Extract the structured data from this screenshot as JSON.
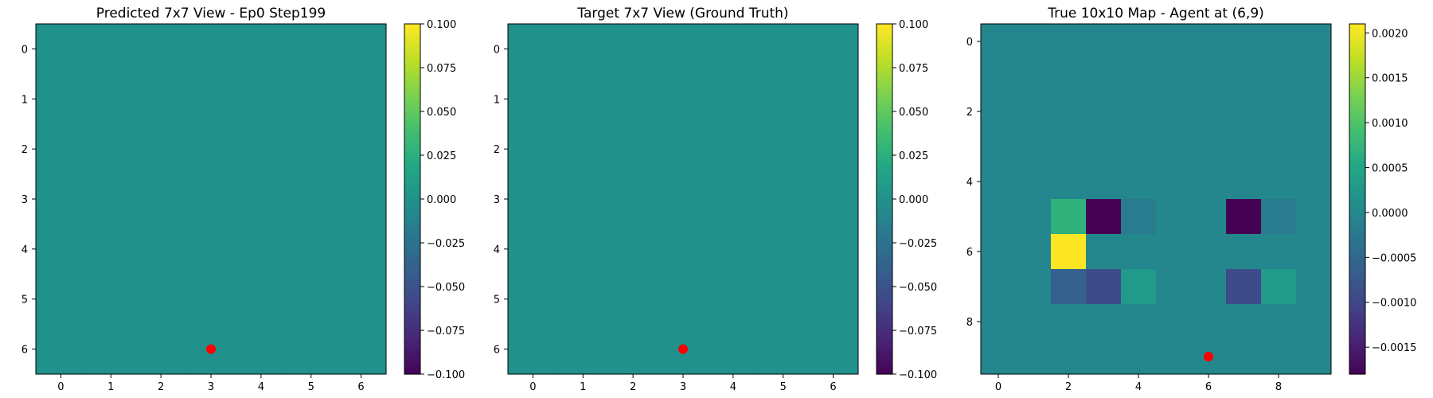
{
  "chart_data": [
    {
      "type": "heatmap",
      "title": "Predicted 7x7 View - Ep0 Step199",
      "x_ticks": [
        "0",
        "1",
        "2",
        "3",
        "4",
        "5",
        "6"
      ],
      "y_ticks": [
        "0",
        "1",
        "2",
        "3",
        "4",
        "5",
        "6"
      ],
      "rows": 7,
      "cols": 7,
      "values": [
        [
          0,
          0,
          0,
          0,
          0,
          0,
          0
        ],
        [
          0,
          0,
          0,
          0,
          0,
          0,
          0
        ],
        [
          0,
          0,
          0,
          0,
          0,
          0,
          0
        ],
        [
          0,
          0,
          0,
          0,
          0,
          0,
          0
        ],
        [
          0,
          0,
          0,
          0,
          0,
          0,
          0
        ],
        [
          0,
          0,
          0,
          0,
          0,
          0,
          0
        ],
        [
          0,
          0,
          0,
          0,
          0,
          0,
          0
        ]
      ],
      "vmin": -0.1,
      "vmax": 0.1,
      "colorbar_ticks": [
        "0.100",
        "0.075",
        "0.050",
        "0.025",
        "0.000",
        "−0.025",
        "−0.050",
        "−0.075",
        "−0.100"
      ],
      "colorbar_tick_values": [
        0.1,
        0.075,
        0.05,
        0.025,
        0,
        -0.025,
        -0.05,
        -0.075,
        -0.1
      ],
      "marker": {
        "x": 3,
        "y": 6,
        "color": "#ff0000"
      },
      "colormap": "viridis"
    },
    {
      "type": "heatmap",
      "title": "Target 7x7 View (Ground Truth)",
      "x_ticks": [
        "0",
        "1",
        "2",
        "3",
        "4",
        "5",
        "6"
      ],
      "y_ticks": [
        "0",
        "1",
        "2",
        "3",
        "4",
        "5",
        "6"
      ],
      "rows": 7,
      "cols": 7,
      "values": [
        [
          0,
          0,
          0,
          0,
          0,
          0,
          0
        ],
        [
          0,
          0,
          0,
          0,
          0,
          0,
          0
        ],
        [
          0,
          0,
          0,
          0,
          0,
          0,
          0
        ],
        [
          0,
          0,
          0,
          0,
          0,
          0,
          0
        ],
        [
          0,
          0,
          0,
          0,
          0,
          0,
          0
        ],
        [
          0,
          0,
          0,
          0,
          0,
          0,
          0
        ],
        [
          0,
          0,
          0,
          0,
          0,
          0,
          0
        ]
      ],
      "vmin": -0.1,
      "vmax": 0.1,
      "colorbar_ticks": [
        "0.100",
        "0.075",
        "0.050",
        "0.025",
        "0.000",
        "−0.025",
        "−0.050",
        "−0.075",
        "−0.100"
      ],
      "colorbar_tick_values": [
        0.1,
        0.075,
        0.05,
        0.025,
        0,
        -0.025,
        -0.05,
        -0.075,
        -0.1
      ],
      "marker": {
        "x": 3,
        "y": 6,
        "color": "#ff0000"
      },
      "colormap": "viridis"
    },
    {
      "type": "heatmap",
      "title": "True 10x10 Map - Agent at (6,9)",
      "x_ticks": [
        "0",
        "2",
        "4",
        "6",
        "8"
      ],
      "x_tick_values": [
        0,
        2,
        4,
        6,
        8
      ],
      "y_ticks": [
        "0",
        "2",
        "4",
        "6",
        "8"
      ],
      "y_tick_values": [
        0,
        2,
        4,
        6,
        8
      ],
      "rows": 10,
      "cols": 10,
      "values": [
        [
          0,
          0,
          0,
          0,
          0,
          0,
          0,
          0,
          0,
          0
        ],
        [
          0,
          0,
          0,
          0,
          0,
          0,
          0,
          0,
          0,
          0
        ],
        [
          0,
          0,
          0,
          0,
          0,
          0,
          0,
          0,
          0,
          0
        ],
        [
          0,
          0,
          0,
          0,
          0,
          0,
          0,
          0,
          0,
          0
        ],
        [
          0,
          0,
          0,
          0,
          0,
          0,
          0,
          0,
          0,
          0
        ],
        [
          0,
          0,
          0.0007,
          -0.0018,
          -0.0002,
          0,
          0,
          -0.0018,
          -0.0002,
          0
        ],
        [
          0,
          0,
          0.0021,
          0,
          0,
          0,
          0,
          0,
          0,
          0
        ],
        [
          0,
          0,
          -0.0006,
          -0.0009,
          0.0003,
          0,
          0,
          -0.0009,
          0.0003,
          0
        ],
        [
          0,
          0,
          0,
          0,
          0,
          0,
          0,
          0,
          0,
          0
        ],
        [
          0,
          0,
          0,
          0,
          0,
          0,
          0,
          0,
          0,
          0
        ]
      ],
      "vmin": -0.0018,
      "vmax": 0.0021,
      "colorbar_ticks": [
        "0.0020",
        "0.0015",
        "0.0010",
        "0.0005",
        "0.0000",
        "−0.0005",
        "−0.0010",
        "−0.0015"
      ],
      "colorbar_tick_values": [
        0.002,
        0.0015,
        0.001,
        0.0005,
        0,
        -0.0005,
        -0.001,
        -0.0015
      ],
      "marker": {
        "x": 6,
        "y": 9,
        "color": "#ff0000"
      },
      "colormap": "viridis"
    }
  ]
}
